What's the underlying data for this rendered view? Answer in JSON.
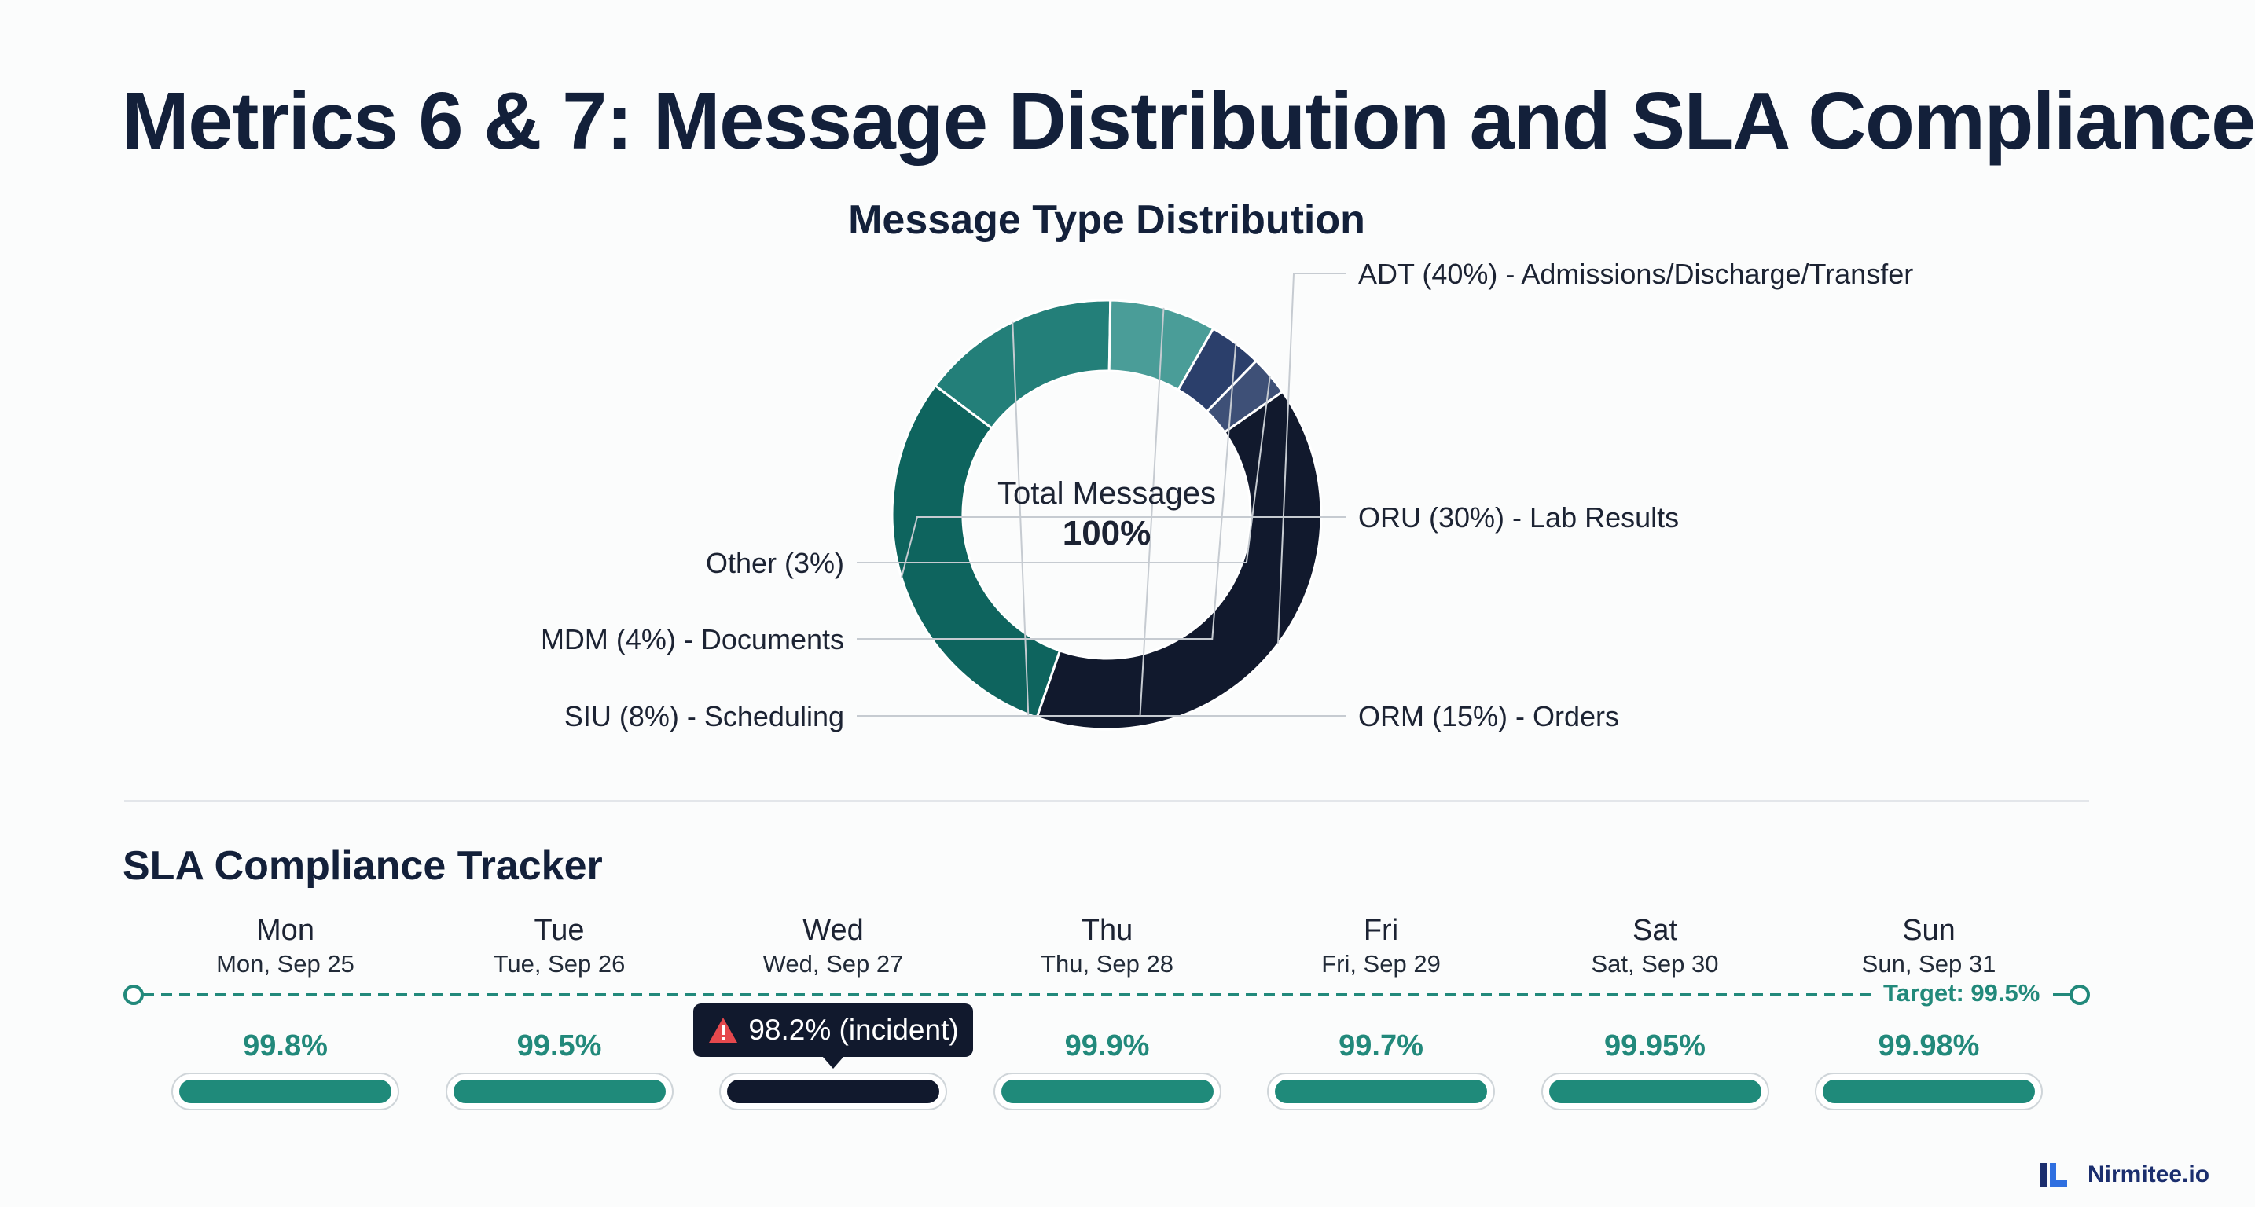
{
  "page_title": "Metrics 6 & 7: Message Distribution and SLA Compliance",
  "brand": {
    "name": "Nirmitee.io"
  },
  "colors": {
    "navy": "#11192d",
    "teal": "#1f8a7a",
    "dark_teal": "#0e645e",
    "accent_text": "#22897b",
    "warning": "#e5484d"
  },
  "chart_data": [
    {
      "type": "pie",
      "variant": "donut",
      "title": "Message Type Distribution",
      "center_label": "Total Messages",
      "center_value": "100%",
      "slices": [
        {
          "key": "ADT",
          "value": 40,
          "label": "ADT (40%) - Admissions/Discharge/Transfer",
          "color": "#11192d"
        },
        {
          "key": "ORU",
          "value": 30,
          "label": "ORU (30%) - Lab Results",
          "color": "#0e645e"
        },
        {
          "key": "ORM",
          "value": 15,
          "label": "ORM (15%) - Orders",
          "color": "#237f79"
        },
        {
          "key": "SIU",
          "value": 8,
          "label": "SIU (8%) - Scheduling",
          "color": "#4a9d98"
        },
        {
          "key": "MDM",
          "value": 4,
          "label": "MDM (4%) - Documents",
          "color": "#2b3f6b"
        },
        {
          "key": "Other",
          "value": 3,
          "label": "Other (3%)",
          "color": "#3e5077"
        }
      ]
    },
    {
      "type": "bar",
      "title": "SLA Compliance Tracker",
      "target": {
        "value": 99.5,
        "label": "Target: 99.5%"
      },
      "days": [
        {
          "day": "Mon",
          "date": "Mon, Sep 25",
          "value": 99.8,
          "display": "99.8%",
          "incident": false
        },
        {
          "day": "Tue",
          "date": "Tue, Sep 26",
          "value": 99.5,
          "display": "99.5%",
          "incident": false
        },
        {
          "day": "Wed",
          "date": "Wed, Sep 27",
          "value": 98.2,
          "display": "98.2% (incident)",
          "incident": true
        },
        {
          "day": "Thu",
          "date": "Thu, Sep 28",
          "value": 99.9,
          "display": "99.9%",
          "incident": false
        },
        {
          "day": "Fri",
          "date": "Fri, Sep 29",
          "value": 99.7,
          "display": "99.7%",
          "incident": false
        },
        {
          "day": "Sat",
          "date": "Sat, Sep 30",
          "value": 99.95,
          "display": "99.95%",
          "incident": false
        },
        {
          "day": "Sun",
          "date": "Sun, Sep 31",
          "value": 99.98,
          "display": "99.98%",
          "incident": false
        }
      ]
    }
  ]
}
